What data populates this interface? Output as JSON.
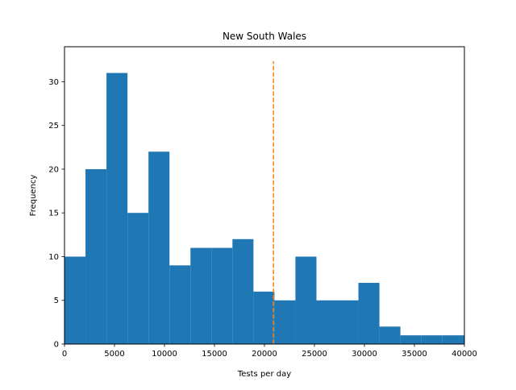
{
  "chart_data": {
    "type": "histogram",
    "title": "New South Wales",
    "xlabel": "Tests per day",
    "ylabel": "Frequency",
    "xlim": [
      0,
      40000
    ],
    "ylim": [
      0,
      34
    ],
    "x_ticks": [
      0,
      5000,
      10000,
      15000,
      20000,
      25000,
      30000,
      35000,
      40000
    ],
    "y_ticks": [
      0,
      5,
      10,
      15,
      20,
      25,
      30
    ],
    "bin_edges": [
      0,
      2100,
      4200,
      6300,
      8400,
      10500,
      12600,
      14700,
      16800,
      18900,
      21000,
      23100,
      25200,
      27300,
      29400,
      31500,
      33600,
      35700,
      37800,
      40000
    ],
    "counts": [
      10,
      20,
      31,
      15,
      22,
      9,
      11,
      11,
      12,
      6,
      5,
      10,
      5,
      5,
      7,
      2,
      1,
      1,
      1
    ],
    "bar_color": "#1f77b4",
    "vline": {
      "x": 20900,
      "color": "#ff7f0e",
      "style": "dashed"
    },
    "grid": false
  }
}
